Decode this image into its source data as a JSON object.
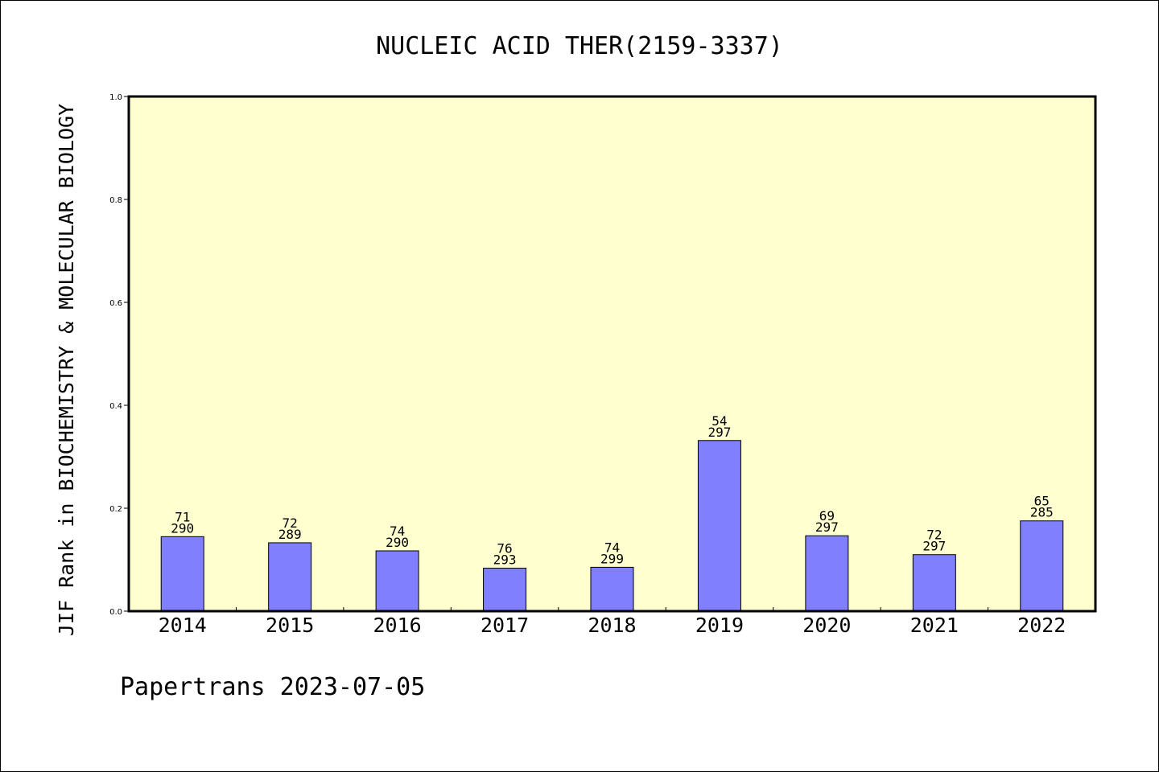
{
  "chart_data": {
    "type": "bar",
    "title": "NUCLEIC ACID THER(2159-3337)",
    "ylabel": "JIF Rank in BIOCHEMISTRY & MOLECULAR BIOLOGY",
    "xlabel": "",
    "ylim": [
      0,
      1.0
    ],
    "yticks": [
      "0.0",
      "0.2",
      "0.4",
      "0.6",
      "0.8",
      "1.0"
    ],
    "categories": [
      "2014",
      "2015",
      "2016",
      "2017",
      "2018",
      "2019",
      "2020",
      "2021",
      "2022"
    ],
    "values": [
      0.1448,
      0.1329,
      0.1172,
      0.0836,
      0.0853,
      0.3316,
      0.1465,
      0.1098,
      0.1754
    ],
    "rank_labels": [
      "71",
      "72",
      "74",
      "76",
      "74",
      "54",
      "69",
      "72",
      "65"
    ],
    "total_labels": [
      "290",
      "289",
      "290",
      "293",
      "299",
      "297",
      "297",
      "297",
      "285"
    ],
    "grid": false,
    "colors": {
      "bar": "#8080ff",
      "plot_background": "#ffffd0"
    }
  },
  "footer": {
    "text": "Papertrans 2023-07-05"
  }
}
